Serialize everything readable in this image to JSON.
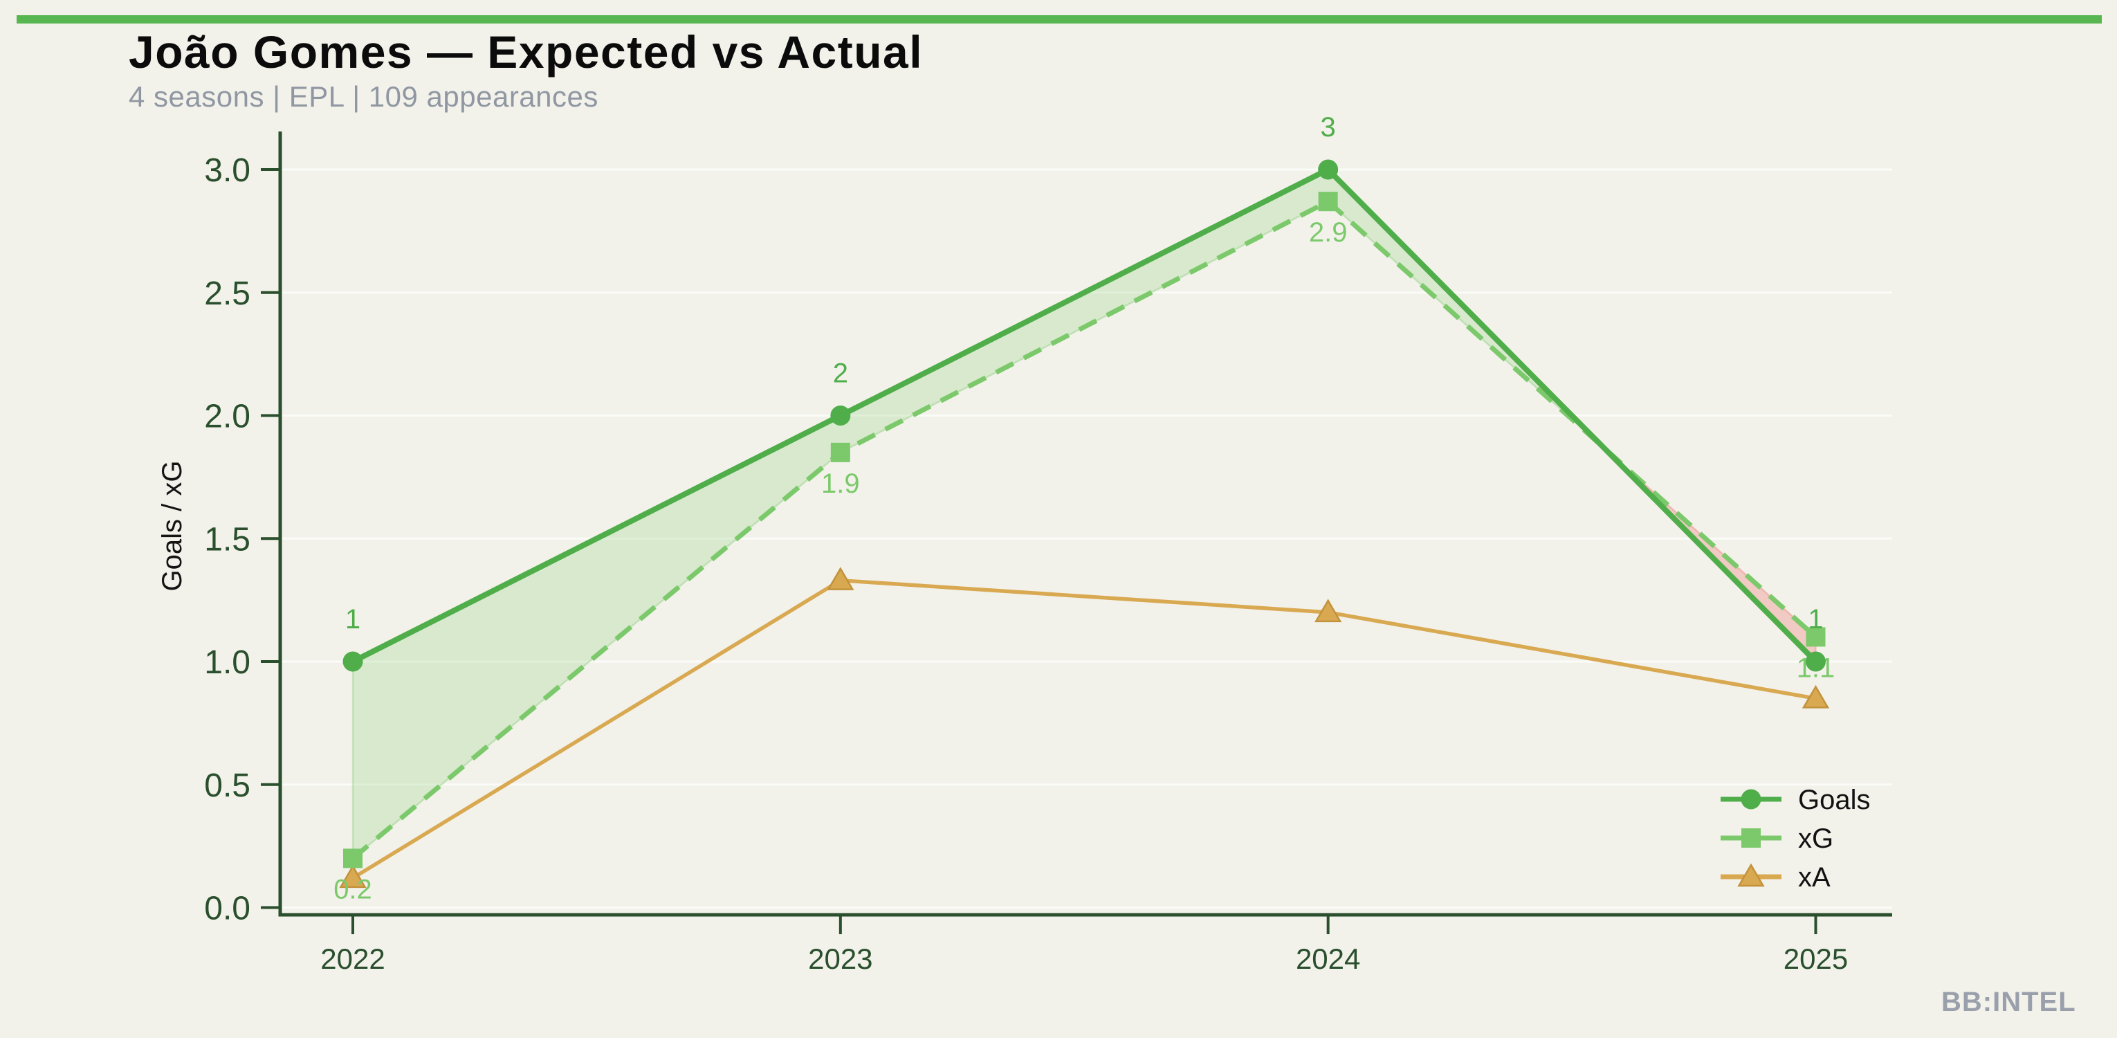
{
  "page": {
    "background_color": "#f2f2eb",
    "accent_bar_color": "#57b64f",
    "watermark": "BB:INTEL"
  },
  "header": {
    "title": "João Gomes — Expected vs Actual",
    "subtitle": "4 seasons | EPL | 109 appearances"
  },
  "chart_data": {
    "type": "line",
    "title": "João Gomes — Expected vs Actual",
    "xlabel": "",
    "ylabel": "Goals / xG",
    "categories": [
      "2022",
      "2023",
      "2024",
      "2025"
    ],
    "ylim": [
      0.0,
      3.0
    ],
    "yticks": [
      0.0,
      0.5,
      1.0,
      1.5,
      2.0,
      2.5,
      3.0
    ],
    "grid": "faint horizontal gridlines at each y tick",
    "legend_position": "lower right",
    "axis_color": "#2a4f2d",
    "series": [
      {
        "name": "Goals",
        "marker": "circle",
        "line_style": "solid",
        "color": "#4fad4a",
        "values": [
          1,
          2,
          3,
          1
        ],
        "point_labels": [
          "1",
          "2",
          "3",
          "1"
        ],
        "label_position": "above"
      },
      {
        "name": "xG",
        "marker": "square",
        "line_style": "dashed",
        "color": "#7cc96b",
        "values": [
          0.2,
          1.85,
          2.87,
          1.1
        ],
        "point_labels": [
          "0.2",
          "1.9",
          "2.9",
          "1.1"
        ],
        "label_position": "below"
      },
      {
        "name": "xA",
        "marker": "triangle",
        "line_style": "solid",
        "color": "#d9a952",
        "values": [
          0.12,
          1.33,
          1.2,
          0.85
        ],
        "point_labels": [],
        "label_position": "below"
      }
    ],
    "fill_between": {
      "description": "shaded band between Goals and xG lines",
      "overperformance_color": "rgba(124,201,107,0.22)",
      "underperformance_color": "rgba(236,120,115,0.33)"
    }
  }
}
